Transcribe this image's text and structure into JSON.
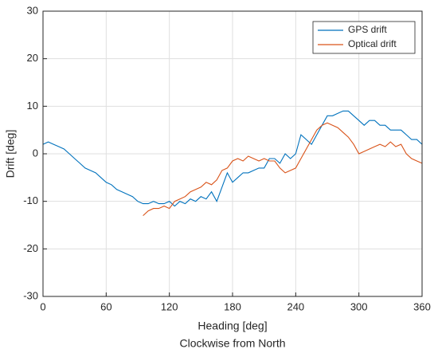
{
  "chart_data": {
    "type": "line",
    "xlabel": "Heading [deg]",
    "subtitle": "Clockwise from North",
    "ylabel": "Drift [deg]",
    "xlim": [
      0,
      360
    ],
    "xticks": [
      0,
      60,
      120,
      180,
      240,
      300,
      360
    ],
    "ylim": [
      -30,
      30
    ],
    "yticks": [
      -30,
      -20,
      -10,
      0,
      10,
      20,
      30
    ],
    "grid": true,
    "legend": "northeast",
    "series": [
      {
        "name": "GPS drift",
        "color": "#0072BD",
        "x": [
          0,
          5,
          10,
          15,
          20,
          25,
          30,
          35,
          40,
          45,
          50,
          55,
          60,
          65,
          70,
          75,
          80,
          85,
          90,
          95,
          100,
          105,
          110,
          115,
          120,
          125,
          130,
          135,
          140,
          145,
          150,
          155,
          160,
          165,
          170,
          175,
          180,
          185,
          190,
          195,
          200,
          205,
          210,
          215,
          220,
          225,
          230,
          235,
          240,
          245,
          250,
          255,
          260,
          265,
          270,
          275,
          280,
          285,
          290,
          295,
          300,
          305,
          310,
          315,
          320,
          325,
          330,
          335,
          340,
          345,
          350,
          355,
          360
        ],
        "values": [
          2,
          2.5,
          2,
          1.5,
          1,
          0,
          -1,
          -2,
          -3,
          -3.5,
          -4,
          -5,
          -6,
          -6.5,
          -7.5,
          -8,
          -8.5,
          -9,
          -10,
          -10.5,
          -10.5,
          -10,
          -10.5,
          -10.5,
          -10,
          -11,
          -10,
          -10.5,
          -9.5,
          -10,
          -9,
          -9.5,
          -8,
          -10,
          -7,
          -4,
          -6,
          -5,
          -4,
          -4,
          -3.5,
          -3,
          -3,
          -1,
          -1,
          -2,
          0,
          -1,
          0,
          4,
          3,
          2,
          4,
          6,
          8,
          8,
          8.5,
          9,
          9,
          8,
          7,
          6,
          7,
          7,
          6,
          6,
          5,
          5,
          5,
          4,
          3,
          3,
          2
        ]
      },
      {
        "name": "Optical drift",
        "color": "#D95319",
        "x": [
          95,
          100,
          105,
          110,
          115,
          120,
          125,
          130,
          135,
          140,
          145,
          150,
          155,
          160,
          165,
          170,
          175,
          180,
          185,
          190,
          195,
          200,
          205,
          210,
          215,
          220,
          225,
          230,
          235,
          240,
          245,
          250,
          255,
          260,
          265,
          270,
          275,
          280,
          285,
          290,
          295,
          300,
          305,
          310,
          315,
          320,
          325,
          330,
          335,
          340,
          345,
          350,
          355,
          360
        ],
        "values": [
          -13,
          -12,
          -11.5,
          -11.5,
          -11,
          -11.5,
          -10,
          -9.5,
          -9,
          -8,
          -7.5,
          -7,
          -6,
          -6.5,
          -5.5,
          -3.5,
          -3,
          -1.5,
          -1,
          -1.5,
          -0.5,
          -1,
          -1.5,
          -1,
          -1.5,
          -1.5,
          -3,
          -4,
          -3.5,
          -3,
          -1,
          1,
          3,
          5,
          6,
          6.5,
          6,
          5.5,
          4.5,
          3.5,
          2,
          0,
          0.5,
          1,
          1.5,
          2,
          1.5,
          2.5,
          1.5,
          2,
          0,
          -1,
          -1.5,
          -2
        ]
      }
    ]
  }
}
